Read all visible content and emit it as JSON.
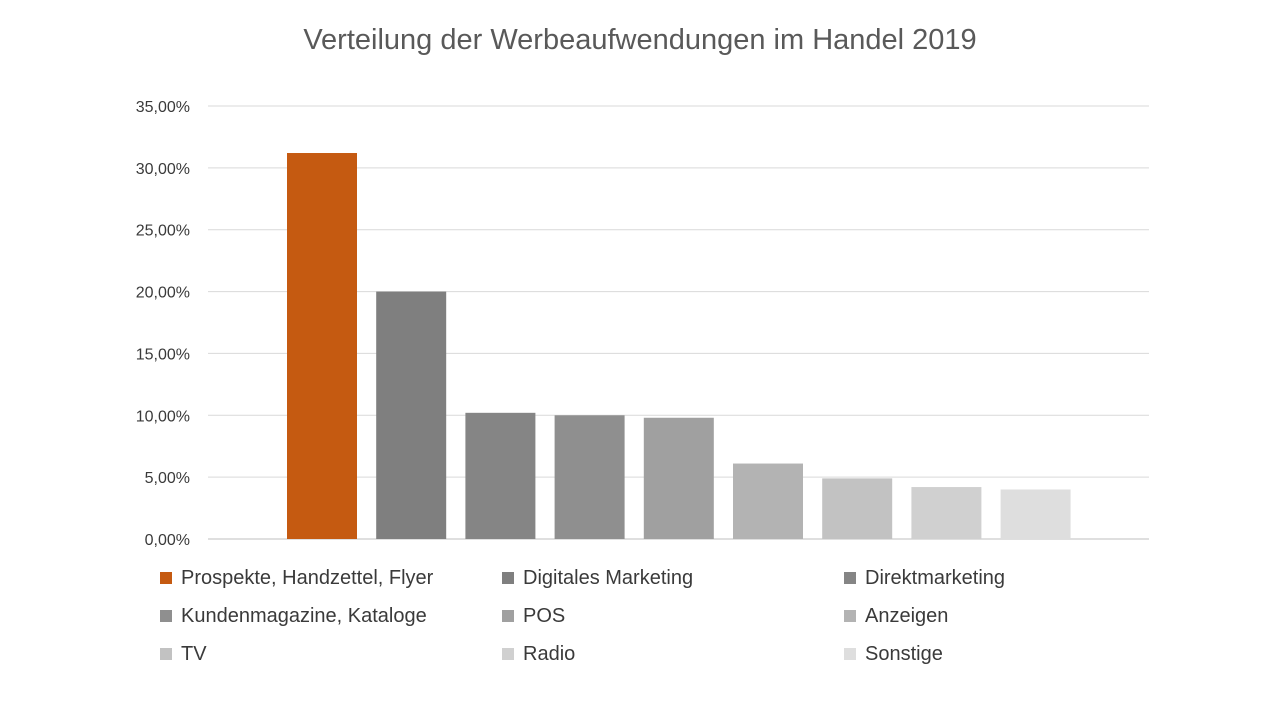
{
  "chart_data": {
    "type": "bar",
    "title": "Verteilung der Werbeaufwendungen im Handel 2019",
    "xlabel": "",
    "ylabel": "",
    "ylim": [
      0,
      35
    ],
    "y_ticks": [
      {
        "value": 0,
        "label": "0,00%"
      },
      {
        "value": 5,
        "label": "5,00%"
      },
      {
        "value": 10,
        "label": "10,00%"
      },
      {
        "value": 15,
        "label": "15,00%"
      },
      {
        "value": 20,
        "label": "20,00%"
      },
      {
        "value": 25,
        "label": "25,00%"
      },
      {
        "value": 30,
        "label": "30,00%"
      },
      {
        "value": 35,
        "label": "35,00%"
      }
    ],
    "grid": true,
    "legend_position": "bottom",
    "categories": [
      "Prospekte, Handzettel, Flyer",
      "Digitales Marketing",
      "Direktmarketing",
      "Kundenmagazine, Kataloge",
      "POS",
      "Anzeigen",
      "TV",
      "Radio",
      "Sonstige"
    ],
    "values": [
      31.2,
      20.0,
      10.2,
      10.0,
      9.8,
      6.1,
      4.9,
      4.2,
      4.0
    ],
    "colors": [
      "#c55a11",
      "#7f7f7f",
      "#858585",
      "#8f8f8f",
      "#a0a0a0",
      "#b3b3b3",
      "#c2c2c2",
      "#d0d0d0",
      "#dedede"
    ]
  }
}
